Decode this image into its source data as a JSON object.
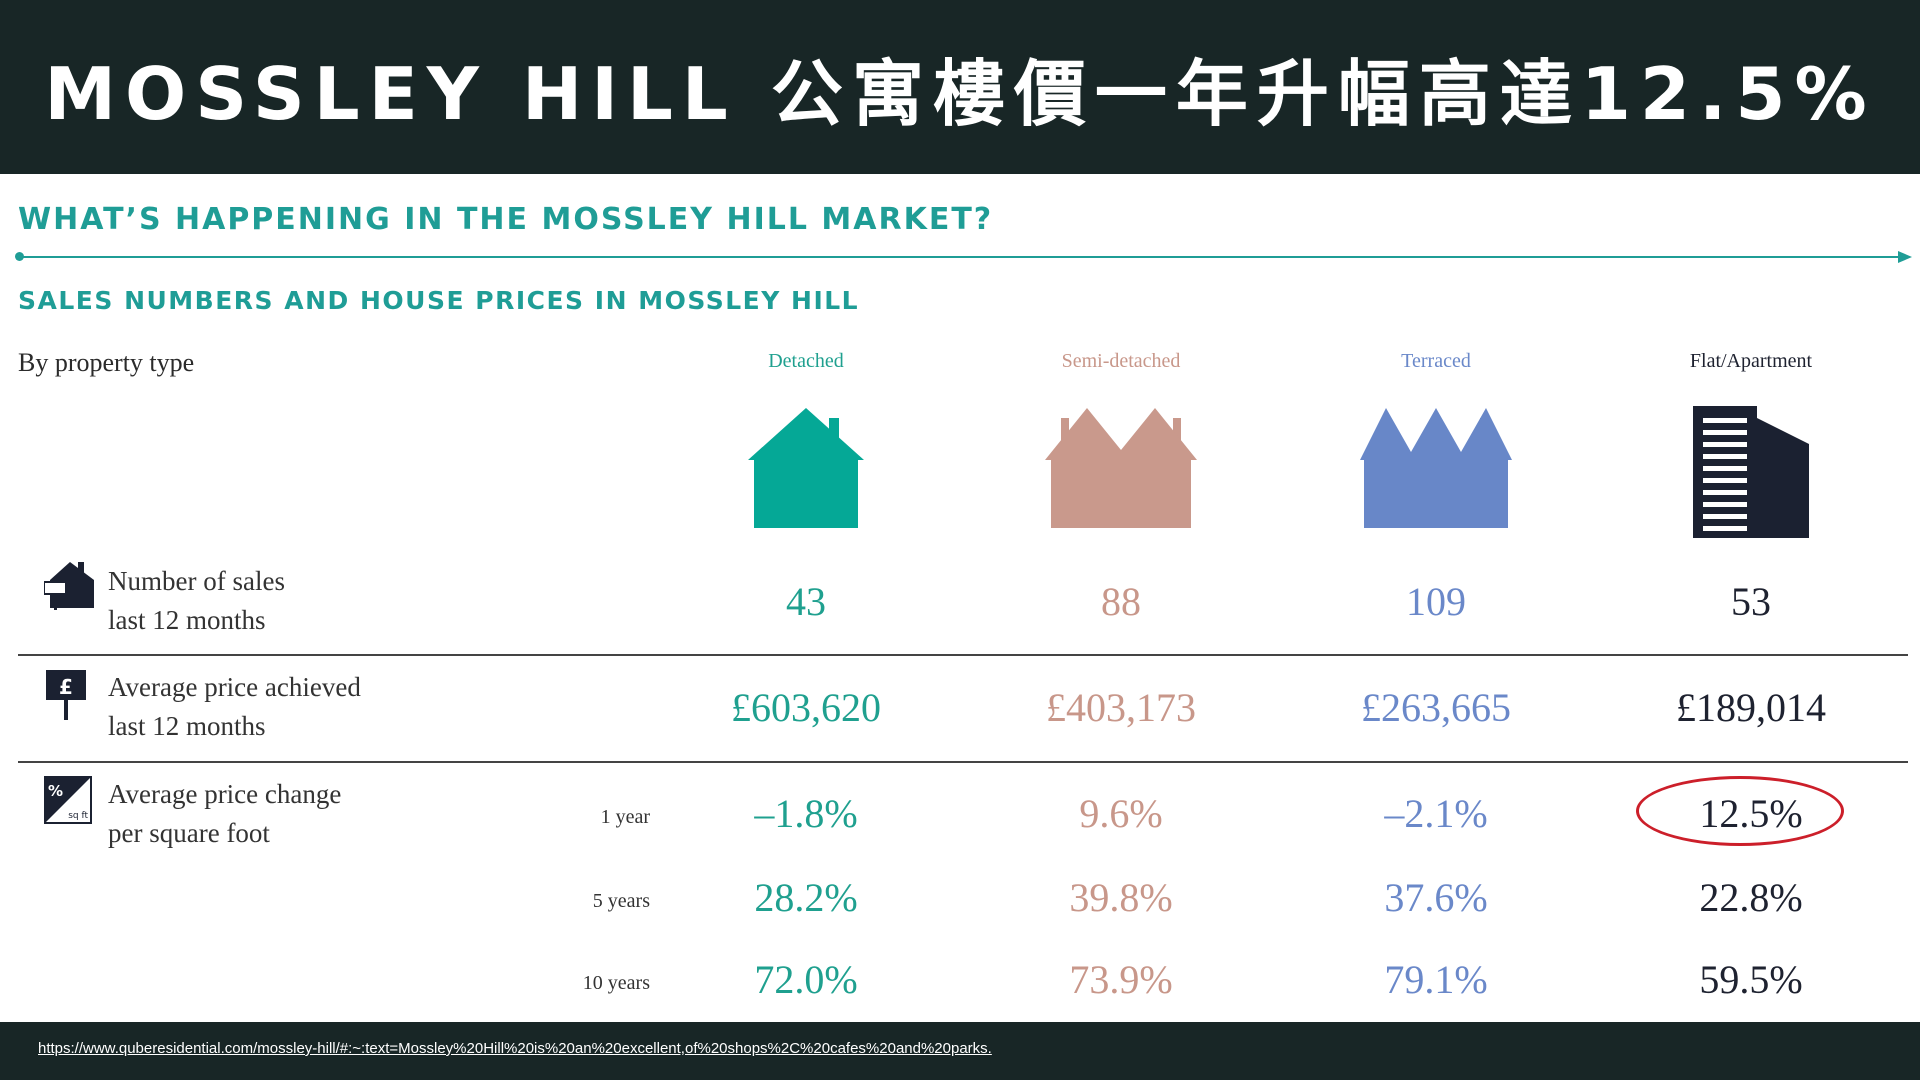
{
  "header": {
    "title": "MOSSLEY HILL 公寓樓價一年升幅高達12.5%"
  },
  "section": {
    "heading": "WHAT’S HAPPENING IN THE MOSSLEY HILL MARKET?",
    "subheading": "SALES NUMBERS AND HOUSE PRICES IN MOSSLEY HILL",
    "by_type_label": "By property type"
  },
  "columns": [
    {
      "label": "Detached",
      "color": "#1fa08f",
      "icon": "detached-house-icon"
    },
    {
      "label": "Semi-detached",
      "color": "#c8978a",
      "icon": "semi-detached-house-icon"
    },
    {
      "label": "Terraced",
      "color": "#6a88c9",
      "icon": "terraced-house-icon"
    },
    {
      "label": "Flat/Apartment",
      "color": "#1e2230",
      "icon": "apartment-building-icon"
    }
  ],
  "rows": {
    "sales": {
      "line1": "Number of sales",
      "line2": "last 12 months",
      "icon": "house-sign-icon",
      "values": [
        "43",
        "88",
        "109",
        "53"
      ]
    },
    "price": {
      "line1": "Average price achieved",
      "line2": "last 12 months",
      "icon": "pound-sign-icon",
      "values": [
        "£603,620",
        "£403,173",
        "£263,665",
        "£189,014"
      ]
    },
    "change": {
      "line1": "Average price change",
      "line2": "per square foot",
      "icon": "percent-sqft-icon",
      "icon_text_top": "%",
      "icon_text_bottom": "sq ft",
      "periods": [
        {
          "label": "1 year",
          "values": [
            "–1.8%",
            "9.6%",
            "–2.1%",
            "12.5%"
          ]
        },
        {
          "label": "5 years",
          "values": [
            "28.2%",
            "39.8%",
            "37.6%",
            "22.8%"
          ]
        },
        {
          "label": "10 years",
          "values": [
            "72.0%",
            "73.9%",
            "79.1%",
            "59.5%"
          ]
        }
      ]
    }
  },
  "highlight": {
    "color": "#cc1f2a"
  },
  "footer": {
    "url": "https://www.quberesidential.com/mossley-hill/#:~:text=Mossley%20Hill%20is%20an%20excellent,of%20shops%2C%20cafes%20and%20parks."
  }
}
